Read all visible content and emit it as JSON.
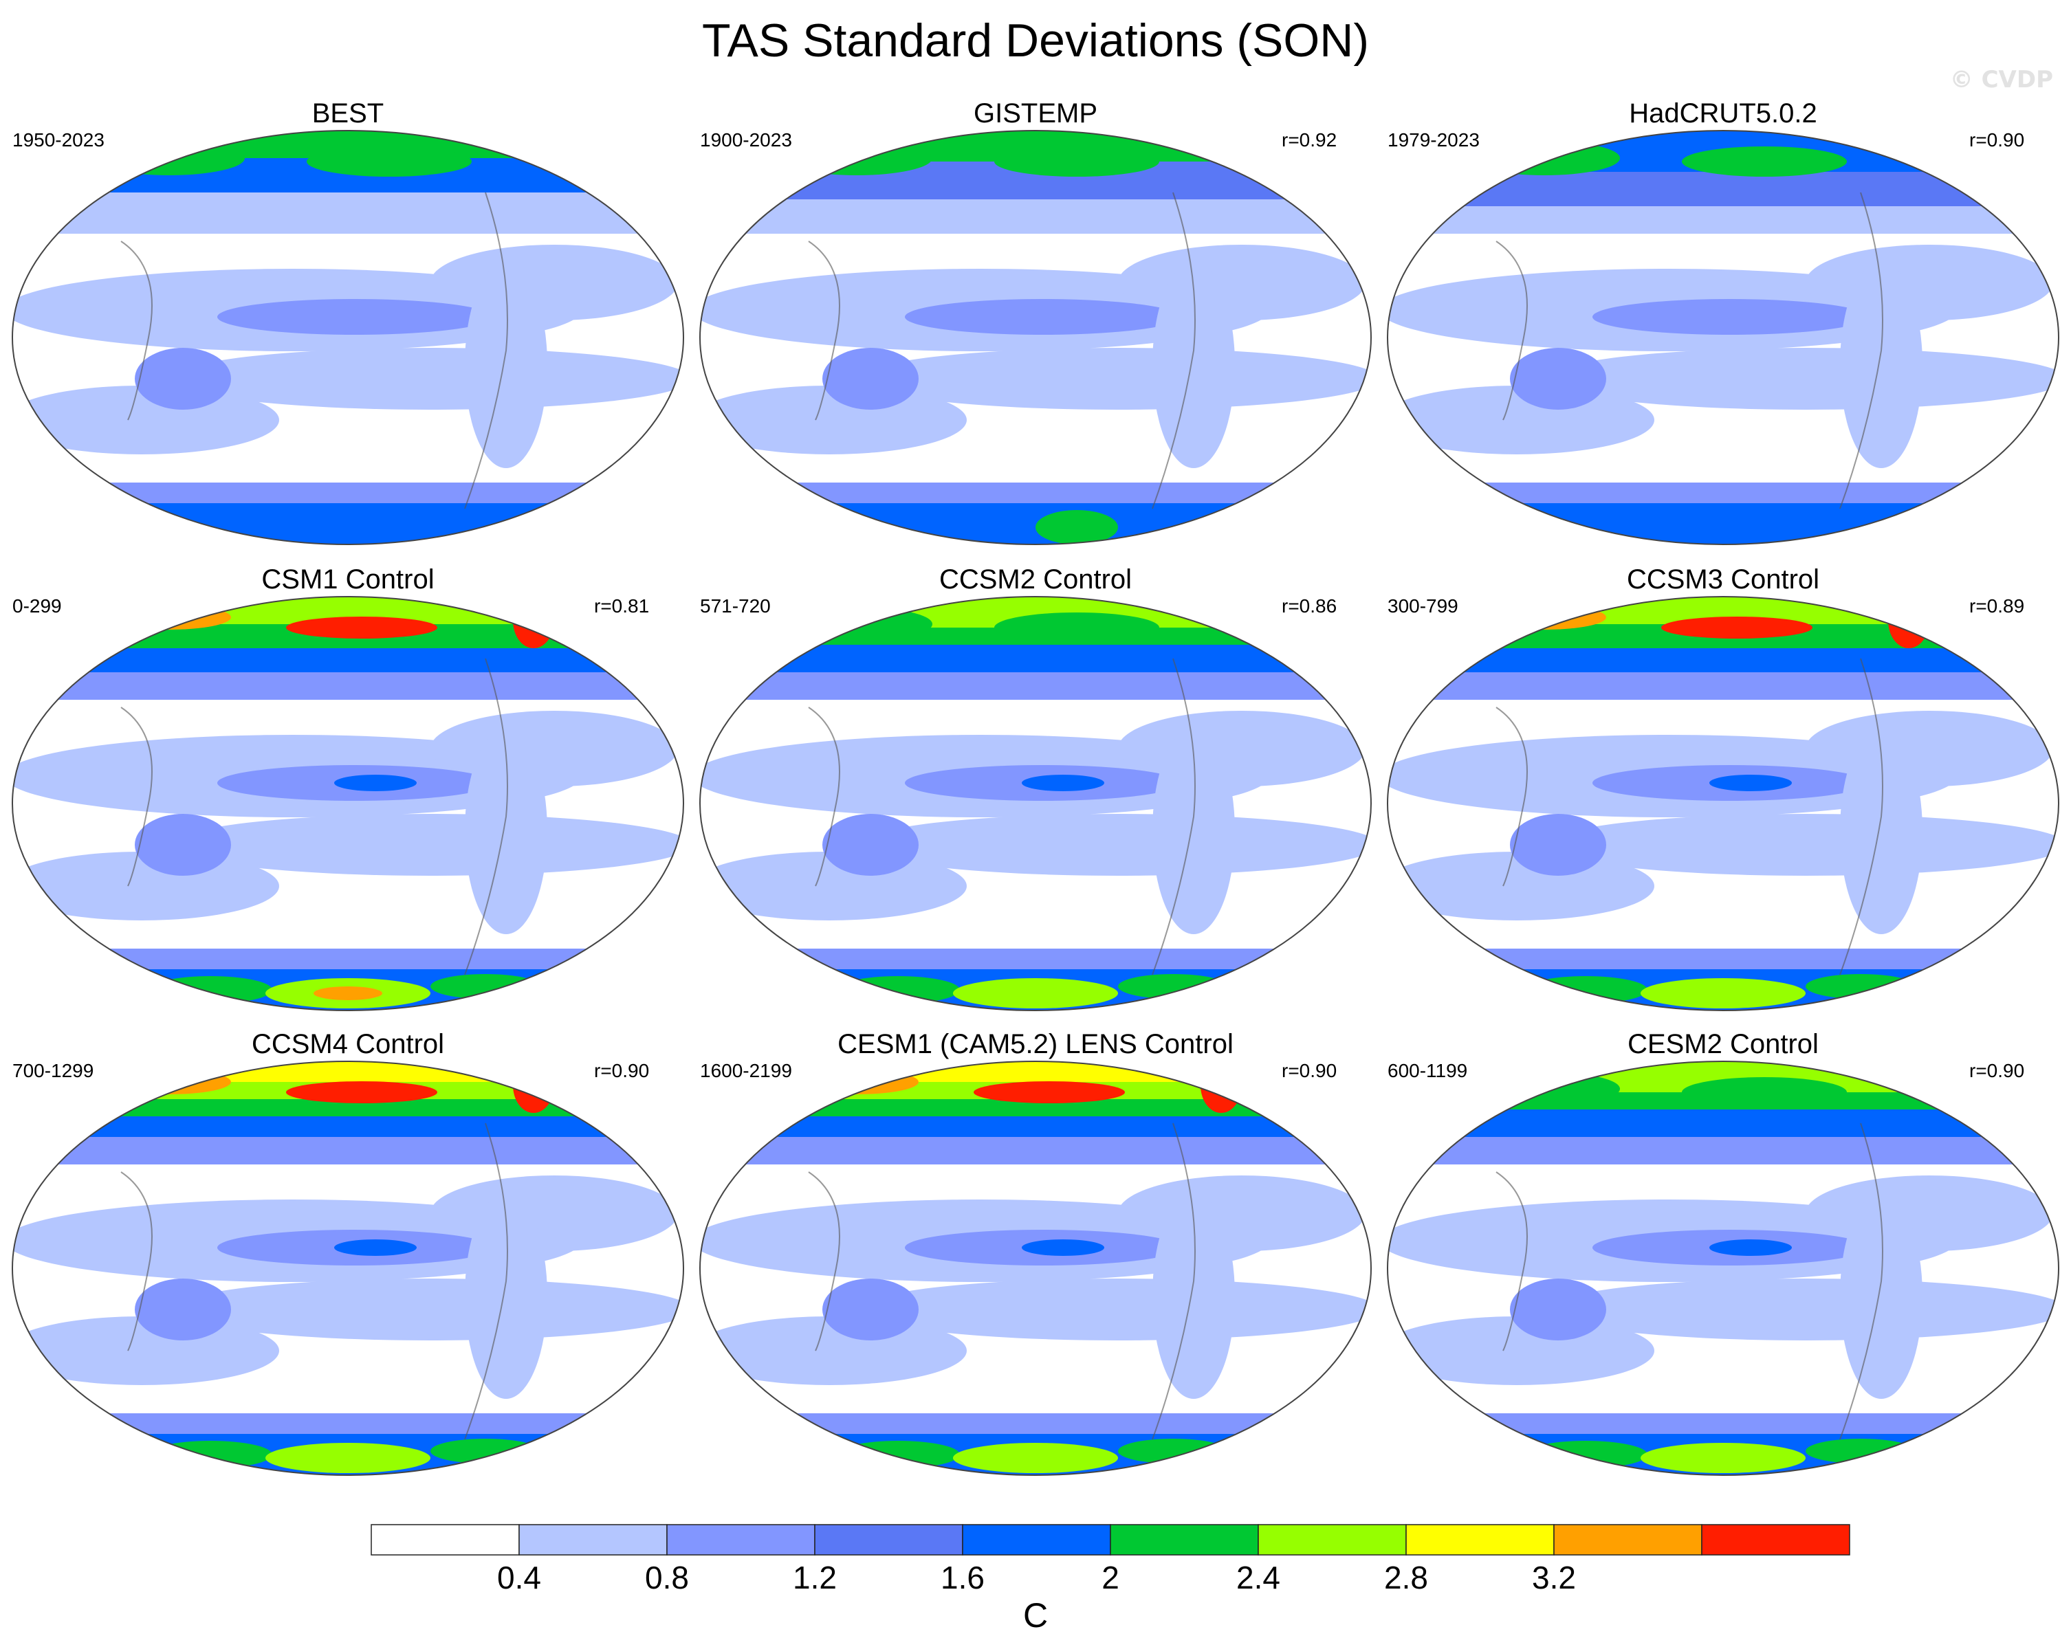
{
  "figure": {
    "title": "TAS Standard Deviations (SON)",
    "watermark": "© CVDP"
  },
  "panels": [
    {
      "title": "BEST",
      "years": "1950-2023",
      "corr": "",
      "regime": "obs_land",
      "antarctic": "blue_spots"
    },
    {
      "title": "GISTEMP",
      "years": "1900-2023",
      "corr": "r=0.92",
      "regime": "obs_moderate",
      "antarctic": "blue_green"
    },
    {
      "title": "HadCRUT5.0.2",
      "years": "1979-2023",
      "corr": "r=0.90",
      "regime": "obs_weak",
      "antarctic": "light"
    },
    {
      "title": "CSM1 Control",
      "years": "0-299",
      "corr": "r=0.81",
      "regime": "model_strong",
      "antarctic": "green_strong"
    },
    {
      "title": "CCSM2 Control",
      "years": "571-720",
      "corr": "r=0.86",
      "regime": "model_medium",
      "antarctic": "green_medium"
    },
    {
      "title": "CCSM3 Control",
      "years": "300-799",
      "corr": "r=0.89",
      "regime": "model_strong",
      "antarctic": "green_medium"
    },
    {
      "title": "CCSM4 Control",
      "years": "700-1299",
      "corr": "r=0.90",
      "regime": "model_red",
      "antarctic": "green_medium"
    },
    {
      "title": "CESM1 (CAM5.2) LENS Control",
      "years": "1600-2199",
      "corr": "r=0.90",
      "regime": "model_red",
      "antarctic": "green_weak"
    },
    {
      "title": "CESM2 Control",
      "years": "600-1199",
      "corr": "r=0.90",
      "regime": "model_medium",
      "antarctic": "green_weak"
    }
  ],
  "colorbar": {
    "levels": [
      "0.4",
      "0.8",
      "1.2",
      "1.6",
      "2",
      "2.4",
      "2.8",
      "3.2"
    ],
    "colors": [
      "#ffffff",
      "#b4c6ff",
      "#8296ff",
      "#5a78f5",
      "#0064ff",
      "#00c832",
      "#96ff00",
      "#ffff00",
      "#ffa000",
      "#ff1e00"
    ],
    "units": "C"
  }
}
